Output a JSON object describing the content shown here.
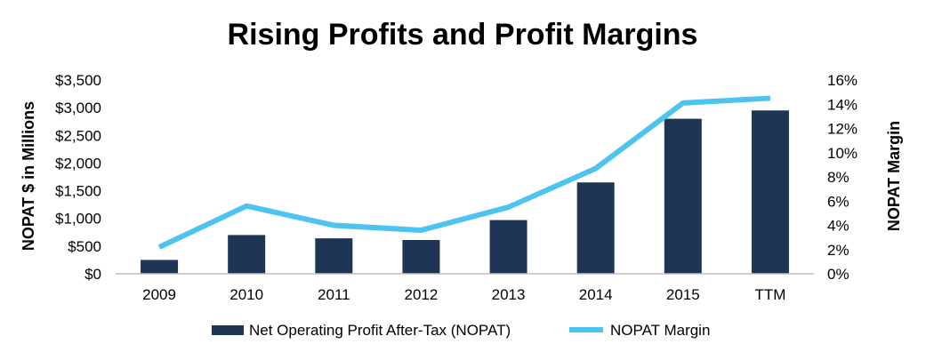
{
  "chart_data": {
    "type": "bar",
    "title": "Rising Profits and Profit Margins",
    "categories": [
      "2009",
      "2010",
      "2011",
      "2012",
      "2013",
      "2014",
      "2015",
      "TTM"
    ],
    "series": [
      {
        "name": "Net Operating Profit After-Tax (NOPAT)",
        "type": "bar",
        "axis": "left",
        "color": "#1F3556",
        "values": [
          250,
          700,
          640,
          610,
          970,
          1650,
          2800,
          2950
        ]
      },
      {
        "name": "NOPAT Margin",
        "type": "line",
        "axis": "right",
        "color": "#4DC3F0",
        "values": [
          2.2,
          5.6,
          4.0,
          3.6,
          5.5,
          8.7,
          14.1,
          14.5
        ]
      }
    ],
    "ylabel": "NOPAT $ in Millions",
    "ylim": [
      0,
      3500
    ],
    "yticks": [
      0,
      500,
      1000,
      1500,
      2000,
      2500,
      3000,
      3500
    ],
    "ytick_labels": [
      "$0",
      "$500",
      "$1,000",
      "$1,500",
      "$2,000",
      "$2,500",
      "$3,000",
      "$3,500"
    ],
    "y2label": "NOPAT Margin",
    "y2lim": [
      0,
      16
    ],
    "y2ticks": [
      0,
      2,
      4,
      6,
      8,
      10,
      12,
      14,
      16
    ],
    "y2tick_labels": [
      "0%",
      "2%",
      "4%",
      "6%",
      "8%",
      "10%",
      "12%",
      "14%",
      "16%"
    ],
    "legend_position": "bottom",
    "grid": false
  }
}
